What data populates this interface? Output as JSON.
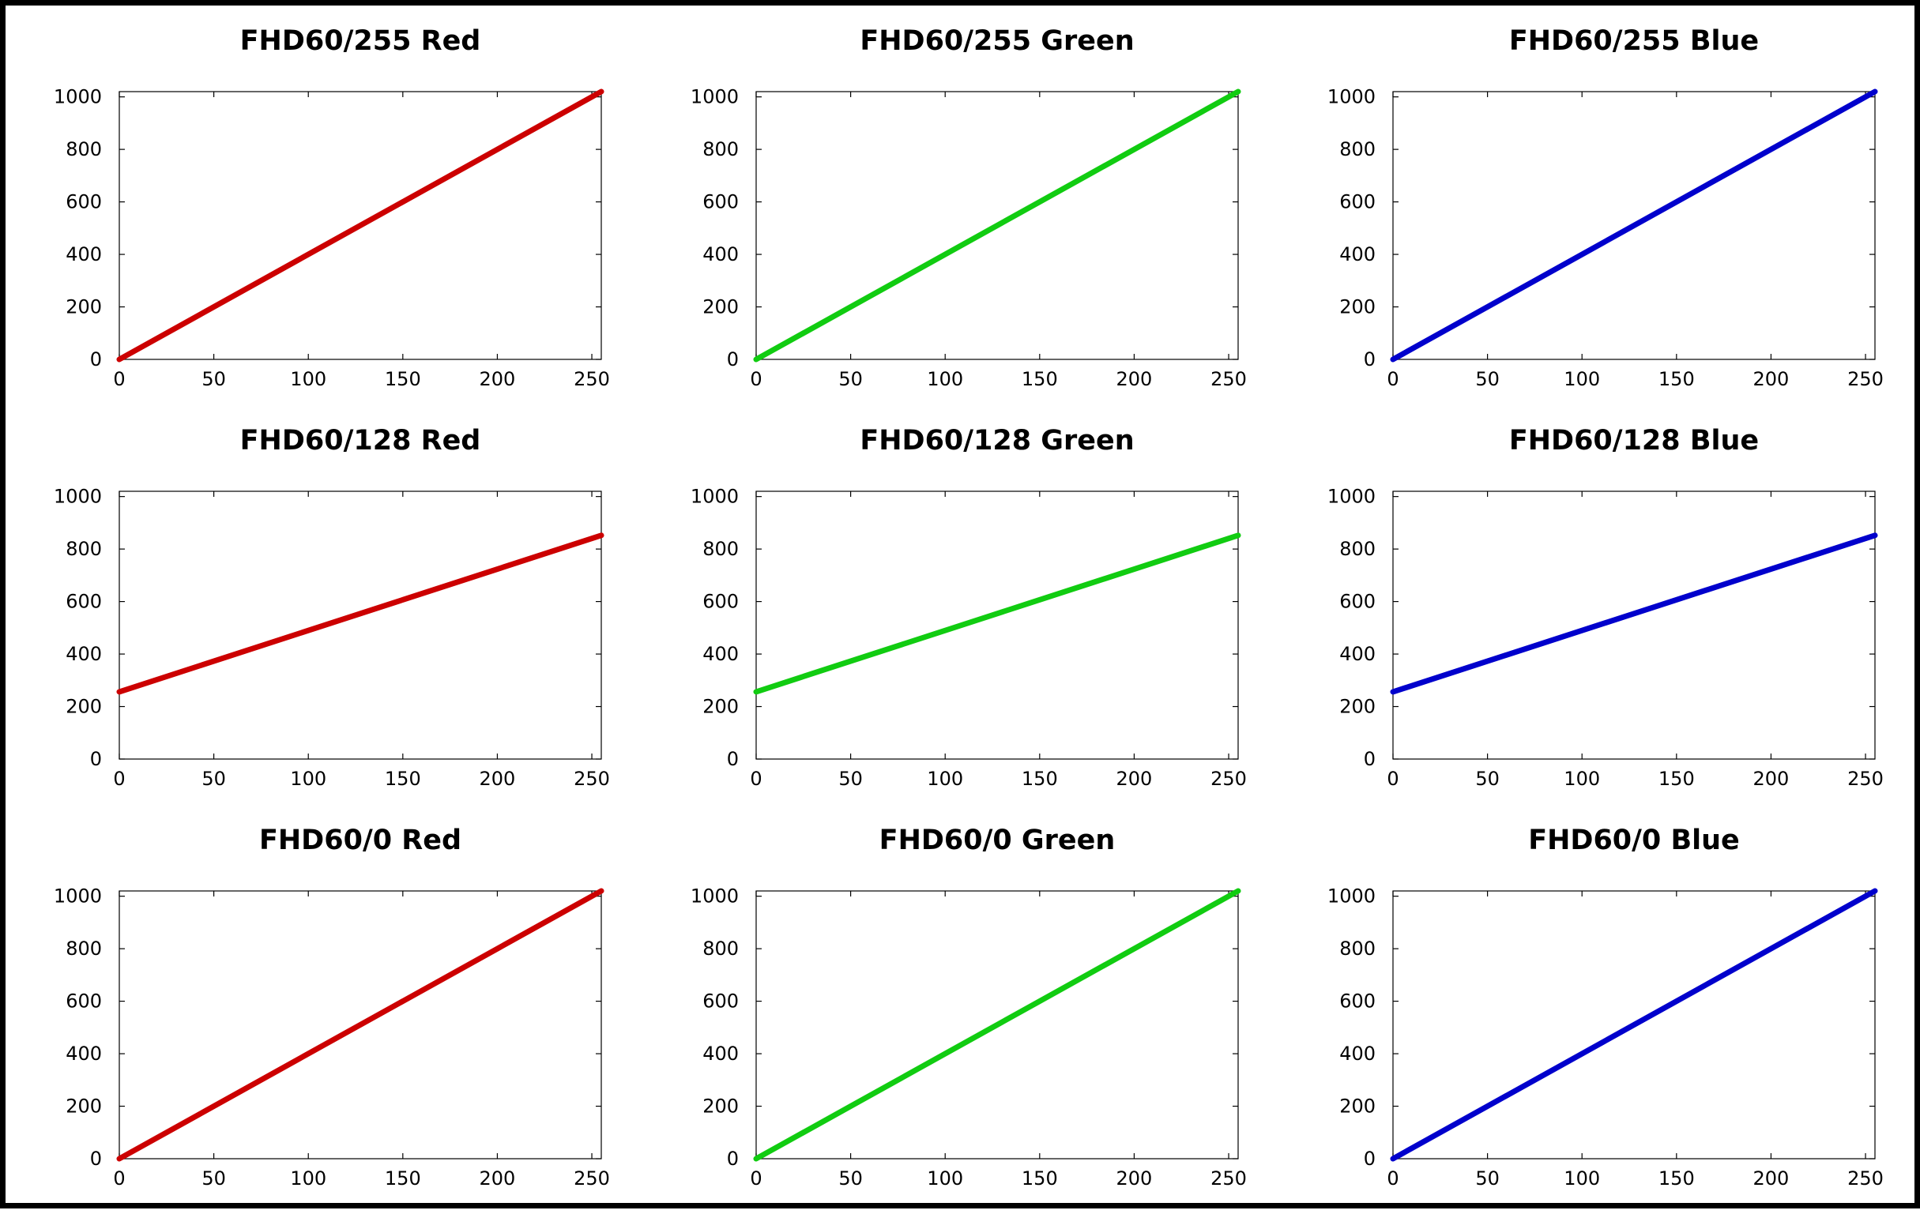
{
  "chart_data": [
    {
      "type": "line",
      "title": "FHD60/255 Red",
      "color": "#cc0000",
      "x": [
        0,
        255
      ],
      "y": [
        0,
        1020
      ],
      "xlim": [
        0,
        255
      ],
      "ylim": [
        0,
        1020
      ],
      "xticks": [
        "0",
        "50",
        "100",
        "150",
        "200",
        "250"
      ],
      "yticks": [
        "0",
        "200",
        "400",
        "600",
        "800",
        "1000"
      ],
      "grid": false
    },
    {
      "type": "line",
      "title": "FHD60/255 Green",
      "color": "#11cc11",
      "x": [
        0,
        255
      ],
      "y": [
        0,
        1020
      ],
      "xlim": [
        0,
        255
      ],
      "ylim": [
        0,
        1020
      ],
      "xticks": [
        "0",
        "50",
        "100",
        "150",
        "200",
        "250"
      ],
      "yticks": [
        "0",
        "200",
        "400",
        "600",
        "800",
        "1000"
      ],
      "grid": false
    },
    {
      "type": "line",
      "title": "FHD60/255 Blue",
      "color": "#0000cc",
      "x": [
        0,
        255
      ],
      "y": [
        0,
        1020
      ],
      "xlim": [
        0,
        255
      ],
      "ylim": [
        0,
        1020
      ],
      "xticks": [
        "0",
        "50",
        "100",
        "150",
        "200",
        "250"
      ],
      "yticks": [
        "0",
        "200",
        "400",
        "600",
        "800",
        "1000"
      ],
      "grid": false
    },
    {
      "type": "line",
      "title": "FHD60/128 Red",
      "color": "#cc0000",
      "x": [
        0,
        255
      ],
      "y": [
        256,
        852
      ],
      "xlim": [
        0,
        255
      ],
      "ylim": [
        0,
        1020
      ],
      "xticks": [
        "0",
        "50",
        "100",
        "150",
        "200",
        "250"
      ],
      "yticks": [
        "0",
        "200",
        "400",
        "600",
        "800",
        "1000"
      ],
      "grid": false
    },
    {
      "type": "line",
      "title": "FHD60/128 Green",
      "color": "#11cc11",
      "x": [
        0,
        255
      ],
      "y": [
        256,
        852
      ],
      "xlim": [
        0,
        255
      ],
      "ylim": [
        0,
        1020
      ],
      "xticks": [
        "0",
        "50",
        "100",
        "150",
        "200",
        "250"
      ],
      "yticks": [
        "0",
        "200",
        "400",
        "600",
        "800",
        "1000"
      ],
      "grid": false
    },
    {
      "type": "line",
      "title": "FHD60/128 Blue",
      "color": "#0000cc",
      "x": [
        0,
        255
      ],
      "y": [
        256,
        852
      ],
      "xlim": [
        0,
        255
      ],
      "ylim": [
        0,
        1020
      ],
      "xticks": [
        "0",
        "50",
        "100",
        "150",
        "200",
        "250"
      ],
      "yticks": [
        "0",
        "200",
        "400",
        "600",
        "800",
        "1000"
      ],
      "grid": false
    },
    {
      "type": "line",
      "title": "FHD60/0 Red",
      "color": "#cc0000",
      "x": [
        0,
        255
      ],
      "y": [
        0,
        1020
      ],
      "xlim": [
        0,
        255
      ],
      "ylim": [
        0,
        1020
      ],
      "xticks": [
        "0",
        "50",
        "100",
        "150",
        "200",
        "250"
      ],
      "yticks": [
        "0",
        "200",
        "400",
        "600",
        "800",
        "1000"
      ],
      "grid": false
    },
    {
      "type": "line",
      "title": "FHD60/0 Green",
      "color": "#11cc11",
      "x": [
        0,
        255
      ],
      "y": [
        0,
        1020
      ],
      "xlim": [
        0,
        255
      ],
      "ylim": [
        0,
        1020
      ],
      "xticks": [
        "0",
        "50",
        "100",
        "150",
        "200",
        "250"
      ],
      "yticks": [
        "0",
        "200",
        "400",
        "600",
        "800",
        "1000"
      ],
      "grid": false
    },
    {
      "type": "line",
      "title": "FHD60/0 Blue",
      "color": "#0000cc",
      "x": [
        0,
        255
      ],
      "y": [
        0,
        1020
      ],
      "xlim": [
        0,
        255
      ],
      "ylim": [
        0,
        1020
      ],
      "xticks": [
        "0",
        "50",
        "100",
        "150",
        "200",
        "250"
      ],
      "yticks": [
        "0",
        "200",
        "400",
        "600",
        "800",
        "1000"
      ],
      "grid": false
    }
  ]
}
